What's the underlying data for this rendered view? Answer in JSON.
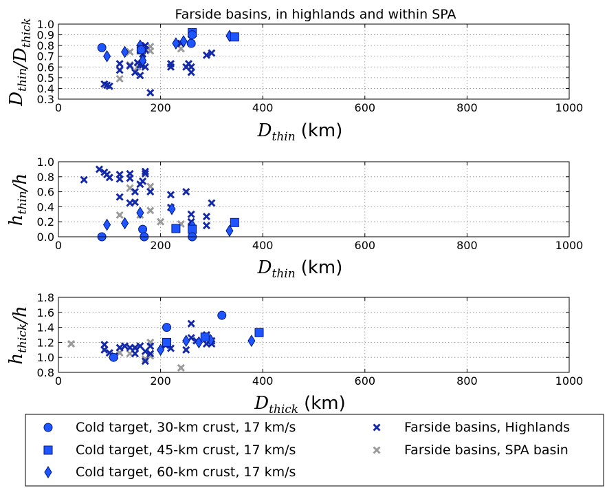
{
  "title": "Farside basins, in highlands and within SPA",
  "colors": {
    "model": "#1f55ff",
    "model_edge": "#001a80",
    "highlands": "#1429a8",
    "spa": "#9a9a9a"
  },
  "legend": {
    "entries": [
      {
        "label": "Cold target, 30-km crust, 17 km/s",
        "marker": "circle",
        "series": "cold30"
      },
      {
        "label": "Cold target, 45-km crust, 17 km/s",
        "marker": "square",
        "series": "cold45"
      },
      {
        "label": "Cold target, 60-km crust, 17 km/s",
        "marker": "diamond",
        "series": "cold60"
      },
      {
        "label": "Farside basins, Highlands",
        "marker": "x",
        "series": "highlands"
      },
      {
        "label": "Farside basins, SPA basin",
        "marker": "x",
        "series": "spa"
      }
    ]
  },
  "chart_data": [
    {
      "type": "scatter",
      "xlabel": {
        "main": "D",
        "sub": "thin",
        "unit": "(km)"
      },
      "ylabel": "D_thin / D_thick",
      "xlim": [
        0,
        1000
      ],
      "ylim": [
        0.3,
        1.0
      ],
      "xticks": [
        0,
        200,
        400,
        600,
        800,
        1000
      ],
      "yticks": [
        0.3,
        0.4,
        0.5,
        0.6,
        0.7,
        0.8,
        0.9,
        1.0
      ],
      "ytick_labels": [
        "0.3",
        "0.4",
        "0.5",
        "0.6",
        "0.7",
        "0.8",
        "0.9",
        "1.0"
      ],
      "grid": true,
      "series": {
        "cold30": [
          [
            85,
            0.78
          ],
          [
            162,
            0.76
          ],
          [
            260,
            0.82
          ],
          [
            262,
            0.9
          ]
        ],
        "cold45": [
          [
            162,
            0.76
          ],
          [
            262,
            0.92
          ],
          [
            345,
            0.88
          ]
        ],
        "cold60": [
          [
            95,
            0.7
          ],
          [
            130,
            0.74
          ],
          [
            160,
            0.8
          ],
          [
            165,
            0.66
          ],
          [
            230,
            0.82
          ],
          [
            245,
            0.84
          ],
          [
            335,
            0.89
          ]
        ],
        "highlands": [
          [
            90,
            0.44
          ],
          [
            95,
            0.43
          ],
          [
            100,
            0.42
          ],
          [
            120,
            0.63
          ],
          [
            120,
            0.57
          ],
          [
            140,
            0.61
          ],
          [
            150,
            0.55
          ],
          [
            155,
            0.64
          ],
          [
            160,
            0.52
          ],
          [
            160,
            0.62
          ],
          [
            165,
            0.62
          ],
          [
            165,
            0.72
          ],
          [
            170,
            0.8
          ],
          [
            170,
            0.76
          ],
          [
            170,
            0.6
          ],
          [
            180,
            0.36
          ],
          [
            220,
            0.63
          ],
          [
            220,
            0.6
          ],
          [
            240,
            0.82
          ],
          [
            250,
            0.6
          ],
          [
            255,
            0.63
          ],
          [
            260,
            0.55
          ],
          [
            260,
            0.6
          ],
          [
            260,
            0.86
          ],
          [
            290,
            0.71
          ],
          [
            300,
            0.73
          ]
        ],
        "spa": [
          [
            120,
            0.49
          ],
          [
            140,
            0.74
          ],
          [
            140,
            0.62
          ],
          [
            155,
            0.6
          ],
          [
            180,
            0.79
          ],
          [
            180,
            0.75
          ],
          [
            240,
            0.77
          ]
        ]
      }
    },
    {
      "type": "scatter",
      "xlabel": {
        "main": "D",
        "sub": "thin",
        "unit": "(km)"
      },
      "ylabel": "h_thin / h",
      "xlim": [
        0,
        1000
      ],
      "ylim": [
        0.0,
        1.0
      ],
      "xticks": [
        0,
        200,
        400,
        600,
        800,
        1000
      ],
      "yticks": [
        0.0,
        0.2,
        0.4,
        0.6,
        0.8,
        1.0
      ],
      "ytick_labels": [
        "0.0",
        "0.2",
        "0.4",
        "0.6",
        "0.8",
        "1.0"
      ],
      "grid": true,
      "series": {
        "cold30": [
          [
            85,
            0.0
          ],
          [
            165,
            0.1
          ],
          [
            168,
            0.0
          ],
          [
            262,
            0.0
          ]
        ],
        "cold45": [
          [
            230,
            0.11
          ],
          [
            262,
            0.1
          ],
          [
            345,
            0.19
          ]
        ],
        "cold60": [
          [
            95,
            0.16
          ],
          [
            130,
            0.18
          ],
          [
            160,
            0.32
          ],
          [
            222,
            0.37
          ],
          [
            262,
            0.07
          ],
          [
            262,
            0.15
          ],
          [
            335,
            0.08
          ]
        ],
        "highlands": [
          [
            50,
            0.76
          ],
          [
            80,
            0.9
          ],
          [
            90,
            0.86
          ],
          [
            95,
            0.83
          ],
          [
            100,
            0.79
          ],
          [
            120,
            0.83
          ],
          [
            120,
            0.77
          ],
          [
            120,
            0.53
          ],
          [
            140,
            0.84
          ],
          [
            140,
            0.78
          ],
          [
            140,
            0.45
          ],
          [
            150,
            0.46
          ],
          [
            150,
            0.6
          ],
          [
            160,
            0.7
          ],
          [
            165,
            0.74
          ],
          [
            170,
            0.87
          ],
          [
            170,
            0.84
          ],
          [
            180,
            0.6
          ],
          [
            220,
            0.56
          ],
          [
            220,
            0.39
          ],
          [
            250,
            0.6
          ],
          [
            260,
            0.3
          ],
          [
            260,
            0.2
          ],
          [
            290,
            0.27
          ],
          [
            290,
            0.15
          ],
          [
            300,
            0.45
          ]
        ],
        "spa": [
          [
            120,
            0.29
          ],
          [
            140,
            0.65
          ],
          [
            150,
            0.46
          ],
          [
            160,
            0.29
          ],
          [
            180,
            0.67
          ],
          [
            180,
            0.35
          ],
          [
            200,
            0.2
          ],
          [
            240,
            0.17
          ]
        ]
      }
    },
    {
      "type": "scatter",
      "xlabel": {
        "main": "D",
        "sub": "thick",
        "unit": "(km)"
      },
      "ylabel": "h_thick / h",
      "xlim": [
        0,
        1000
      ],
      "ylim": [
        0.8,
        1.8
      ],
      "xticks": [
        0,
        200,
        400,
        600,
        800,
        1000
      ],
      "yticks": [
        0.8,
        1.0,
        1.2,
        1.4,
        1.6,
        1.8
      ],
      "ytick_labels": [
        "0.8",
        "1.0",
        "1.2",
        "1.4",
        "1.6",
        "1.8"
      ],
      "grid": true,
      "series": {
        "cold30": [
          [
            108,
            1.0
          ],
          [
            212,
            1.4
          ],
          [
            320,
            1.56
          ]
        ],
        "cold45": [
          [
            212,
            1.2
          ],
          [
            287,
            1.27
          ],
          [
            393,
            1.33
          ]
        ],
        "cold60": [
          [
            200,
            1.1
          ],
          [
            250,
            1.22
          ],
          [
            275,
            1.2
          ],
          [
            298,
            1.23
          ],
          [
            378,
            1.22
          ]
        ],
        "highlands": [
          [
            90,
            1.17
          ],
          [
            90,
            1.1
          ],
          [
            100,
            1.06
          ],
          [
            110,
            1.02
          ],
          [
            120,
            1.13
          ],
          [
            130,
            1.15
          ],
          [
            140,
            1.13
          ],
          [
            150,
            1.13
          ],
          [
            150,
            1.05
          ],
          [
            160,
            1.15
          ],
          [
            170,
            1.08
          ],
          [
            170,
            0.95
          ],
          [
            180,
            1.05
          ],
          [
            180,
            1.15
          ],
          [
            210,
            1.16
          ],
          [
            220,
            1.12
          ],
          [
            250,
            1.1
          ],
          [
            260,
            1.45
          ],
          [
            260,
            1.26
          ],
          [
            270,
            1.22
          ],
          [
            290,
            1.3
          ],
          [
            290,
            1.18
          ],
          [
            300,
            1.22
          ],
          [
            300,
            1.18
          ]
        ],
        "spa": [
          [
            25,
            1.18
          ],
          [
            120,
            1.06
          ],
          [
            140,
            1.05
          ],
          [
            150,
            1.12
          ],
          [
            170,
            0.98
          ],
          [
            180,
            1.02
          ],
          [
            180,
            1.2
          ],
          [
            240,
            0.86
          ]
        ]
      }
    }
  ]
}
